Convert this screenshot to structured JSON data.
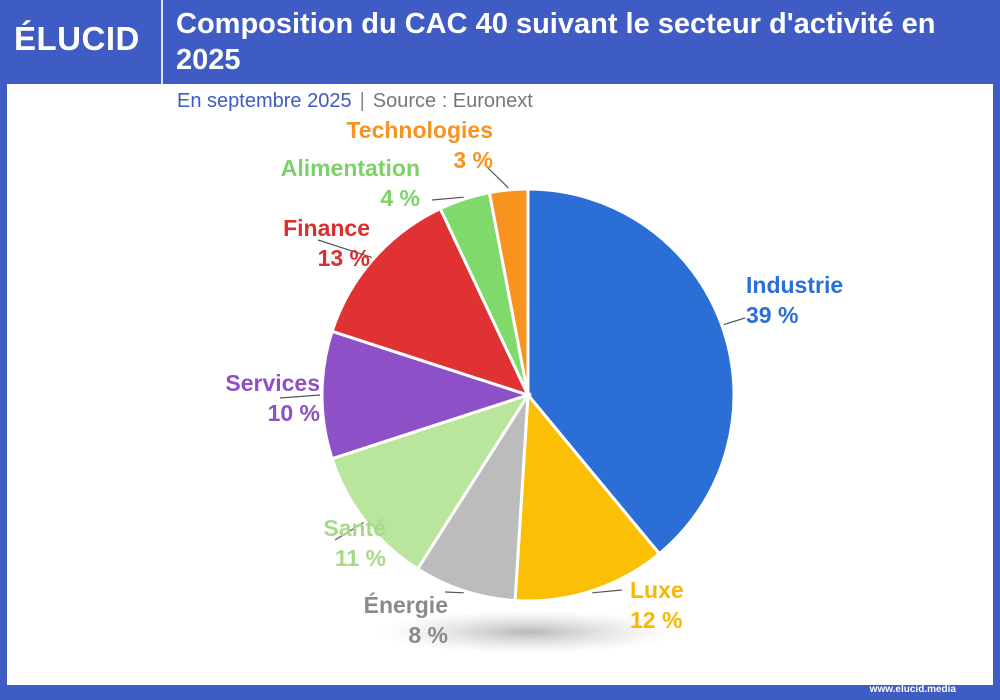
{
  "header": {
    "logo": "ÉLUCID",
    "title": "Composition du CAC 40 suivant le secteur d'activité en 2025"
  },
  "subtitle": {
    "date": "En septembre 2025",
    "separator": "|",
    "source": "Source : Euronext"
  },
  "footer": {
    "url": "www.elucid.media"
  },
  "chart_data": {
    "type": "pie",
    "title": "Composition du CAC 40 suivant le secteur d'activité en 2025",
    "start": "top",
    "direction": "clockwise",
    "slices": [
      {
        "label": "Industrie",
        "value": 39,
        "text": "39 %",
        "color": "#2b6fd6",
        "label_color": "#2b6fd6"
      },
      {
        "label": "Luxe",
        "value": 12,
        "text": "12 %",
        "color": "#fbbf06",
        "label_color": "#f5b800"
      },
      {
        "label": "Énergie",
        "value": 8,
        "text": "8 %",
        "color": "#bcbcbc",
        "label_color": "#8a8a8a"
      },
      {
        "label": "Santé",
        "value": 11,
        "text": "11 %",
        "color": "#b9e69c",
        "label_color": "#a6d98a"
      },
      {
        "label": "Services",
        "value": 10,
        "text": "10 %",
        "color": "#8e50c6",
        "label_color": "#8e50c6"
      },
      {
        "label": "Finance",
        "value": 13,
        "text": "13 %",
        "color": "#e03232",
        "label_color": "#d92f2f"
      },
      {
        "label": "Alimentation",
        "value": 4,
        "text": "4 %",
        "color": "#7fd96b",
        "label_color": "#7cd268"
      },
      {
        "label": "Technologies",
        "value": 3,
        "text": "3 %",
        "color": "#f7931e",
        "label_color": "#f7931e"
      }
    ]
  }
}
